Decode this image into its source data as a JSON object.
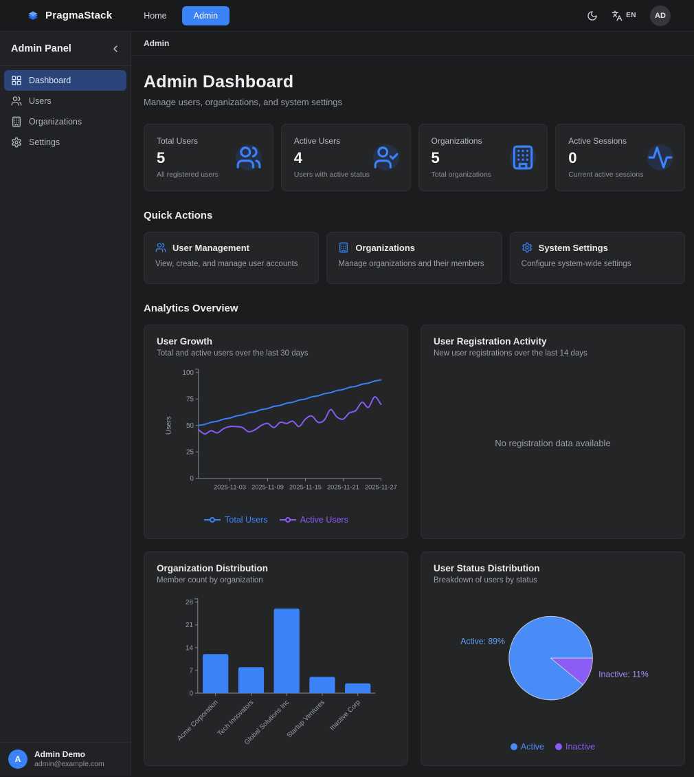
{
  "theme": {
    "accent": "#3b82f6",
    "purple": "#8b5cf6",
    "card_bg": "#242527",
    "page_bg": "#1b1c1e",
    "active_item_bg": "#2b4479"
  },
  "navbar": {
    "brand": "PragmaStack",
    "items": [
      {
        "label": "Home",
        "active": false
      },
      {
        "label": "Admin",
        "active": true
      }
    ],
    "language": "EN",
    "avatar": "AD"
  },
  "sidebar": {
    "title": "Admin Panel",
    "items": [
      {
        "label": "Dashboard",
        "icon": "layout-grid",
        "active": true
      },
      {
        "label": "Users",
        "icon": "users",
        "active": false
      },
      {
        "label": "Organizations",
        "icon": "building",
        "active": false
      },
      {
        "label": "Settings",
        "icon": "settings",
        "active": false
      }
    ],
    "user": {
      "initial": "A",
      "name": "Admin Demo",
      "email": "admin@example.com"
    }
  },
  "breadcrumb": "Admin",
  "page": {
    "title": "Admin Dashboard",
    "subtitle": "Manage users, organizations, and system settings"
  },
  "stats": [
    {
      "label": "Total Users",
      "value": "5",
      "description": "All registered users",
      "icon": "users"
    },
    {
      "label": "Active Users",
      "value": "4",
      "description": "Users with active status",
      "icon": "user-check"
    },
    {
      "label": "Organizations",
      "value": "5",
      "description": "Total organizations",
      "icon": "building"
    },
    {
      "label": "Active Sessions",
      "value": "0",
      "description": "Current active sessions",
      "icon": "activity"
    }
  ],
  "quick_actions": {
    "heading": "Quick Actions",
    "cards": [
      {
        "title": "User Management",
        "description": "View, create, and manage user accounts",
        "icon": "users"
      },
      {
        "title": "Organizations",
        "description": "Manage organizations and their members",
        "icon": "building"
      },
      {
        "title": "System Settings",
        "description": "Configure system-wide settings",
        "icon": "settings"
      }
    ]
  },
  "analytics_heading": "Analytics Overview",
  "chart_data": [
    {
      "type": "line",
      "title": "User Growth",
      "subtitle": "Total and active users over the last 30 days",
      "ylabel": "Users",
      "ylim": [
        0,
        100
      ],
      "yticks": [
        0,
        25,
        50,
        75,
        100
      ],
      "grid": false,
      "legend_position": "bottom",
      "x_tick_labels": [
        "2025-11-03",
        "2025-11-09",
        "2025-11-15",
        "2025-11-21",
        "2025-11-27"
      ],
      "x_tick_indices": [
        5,
        11,
        17,
        23,
        29
      ],
      "series": [
        {
          "name": "Total Users",
          "color": "#3b82f6",
          "values": [
            50,
            51,
            53,
            54,
            56,
            57,
            59,
            60,
            62,
            63,
            65,
            66,
            68,
            69,
            71,
            72,
            74,
            75,
            77,
            78,
            80,
            81,
            83,
            84,
            86,
            87,
            89,
            90,
            92,
            93
          ]
        },
        {
          "name": "Active Users",
          "color": "#8b5cf6",
          "values": [
            46,
            42,
            45,
            43,
            47,
            49,
            49,
            48,
            44,
            46,
            50,
            52,
            48,
            53,
            52,
            54,
            49,
            56,
            59,
            53,
            55,
            65,
            58,
            56,
            62,
            64,
            72,
            67,
            77,
            70
          ]
        }
      ]
    },
    {
      "type": "empty",
      "title": "User Registration Activity",
      "subtitle": "New user registrations over the last 14 days",
      "empty_text": "No registration data available"
    },
    {
      "type": "bar",
      "title": "Organization Distribution",
      "subtitle": "Member count by organization",
      "categories": [
        "Acme Corporation",
        "Tech Innovators",
        "Global Solutions Inc",
        "Startup Ventures",
        "Inactive Corp"
      ],
      "values": [
        12,
        8,
        26,
        5,
        3
      ],
      "ylim": [
        0,
        28
      ],
      "yticks": [
        0,
        7,
        14,
        21,
        28
      ],
      "bar_color": "#3b82f6"
    },
    {
      "type": "pie",
      "title": "User Status Distribution",
      "subtitle": "Breakdown of users by status",
      "legend_position": "bottom",
      "slices": [
        {
          "label": "Active",
          "pct": 89,
          "color": "#4a8cf7",
          "label_text": "Active: 89%",
          "label_color": "#60a5fa"
        },
        {
          "label": "Inactive",
          "pct": 11,
          "color": "#8b5cf6",
          "label_text": "Inactive: 11%",
          "label_color": "#a78bfa"
        }
      ]
    }
  ]
}
